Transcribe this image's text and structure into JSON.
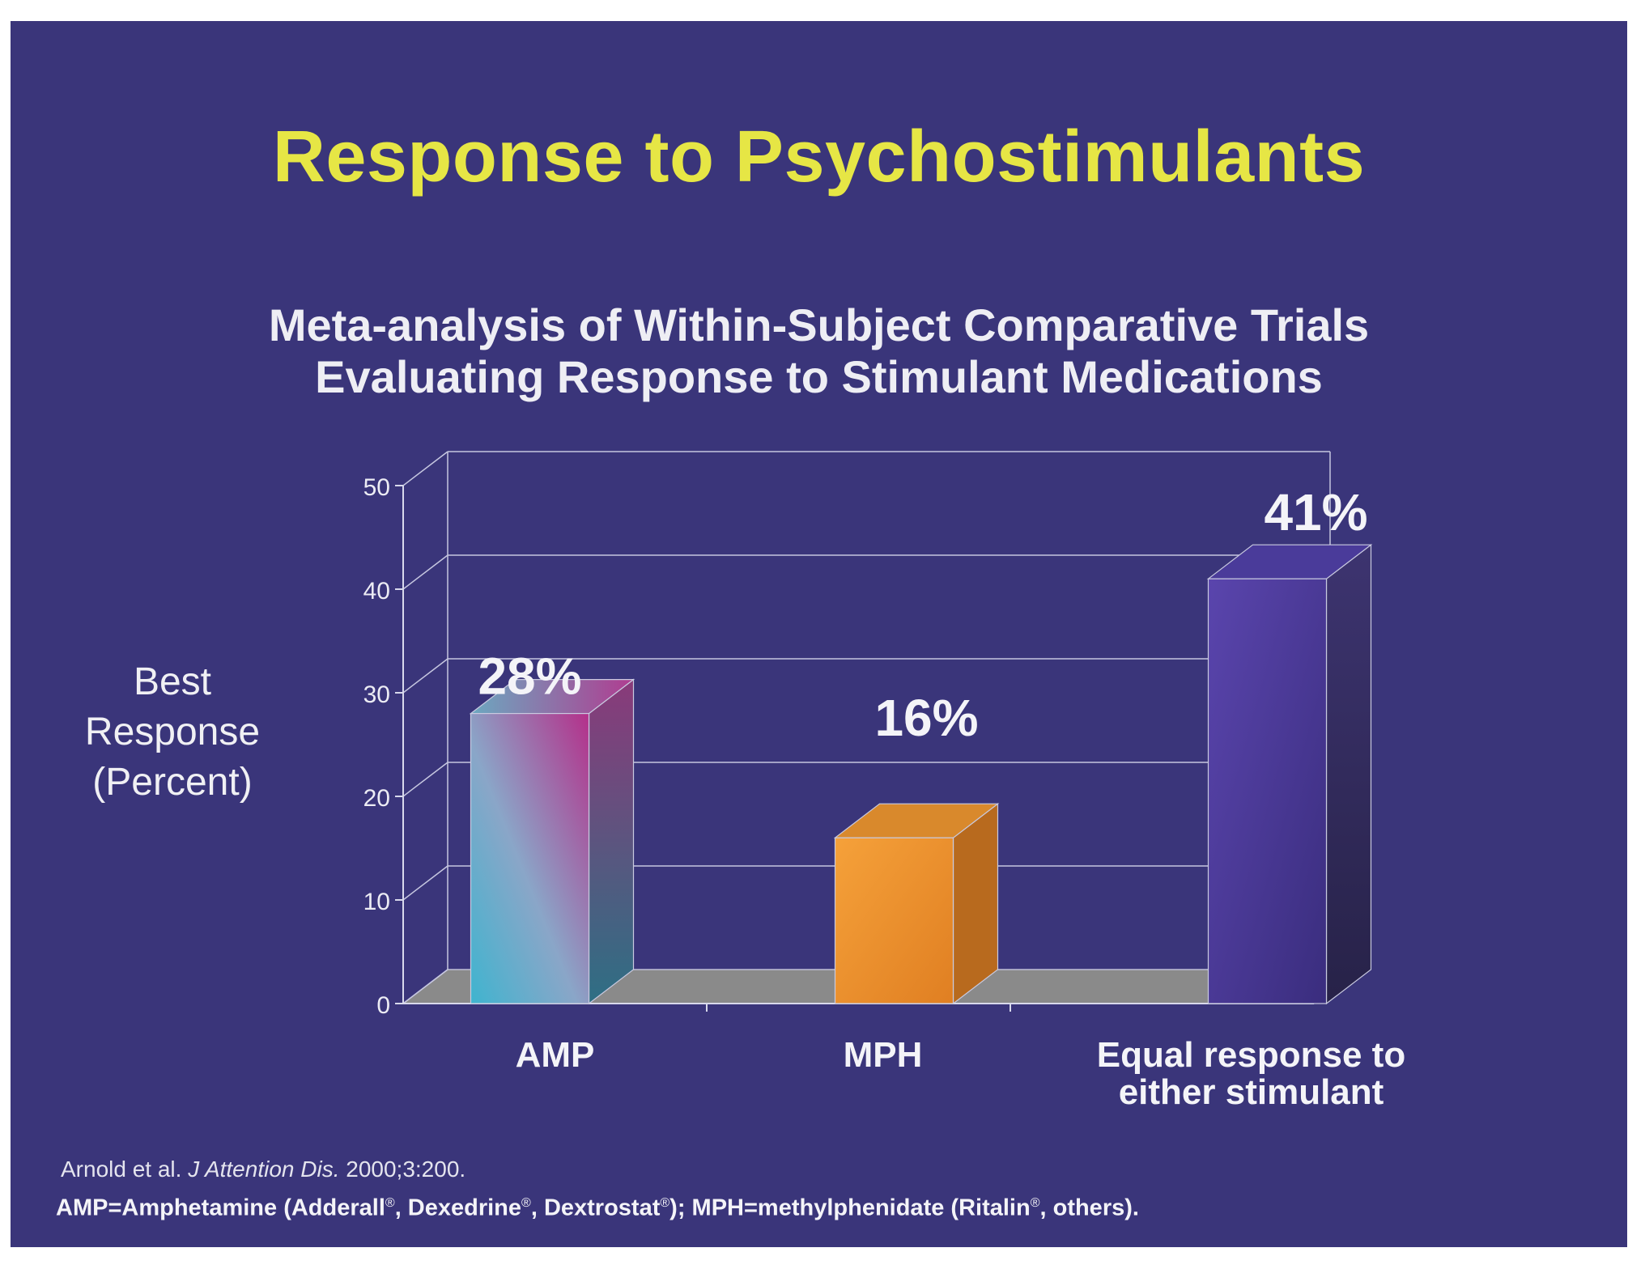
{
  "slide": {
    "title": "Response to Psychostimulants",
    "subtitle_line1": "Meta-analysis of Within-Subject Comparative Trials",
    "subtitle_line2": "Evaluating Response to Stimulant Medications",
    "background_color": "#3a357a",
    "title_color": "#e6e645"
  },
  "citation": {
    "authors": "Arnold et al.",
    "journal": "J Attention Dis.",
    "ref": "2000;3:200."
  },
  "footnote": {
    "p1": "AMP=Amphetamine (Adderall",
    "p2": ", Dexedrine",
    "p3": ", Dextrostat",
    "p4": "); MPH=methylphenidate (Ritalin",
    "p5": ", others).",
    "reg": "®"
  },
  "chart_data": {
    "type": "bar",
    "categories": [
      [
        "AMP"
      ],
      [
        "MPH"
      ],
      [
        "Equal response to",
        "either stimulant"
      ]
    ],
    "values": [
      28,
      16,
      41
    ],
    "data_labels": [
      "28%",
      "16%",
      "41%"
    ],
    "ylabel_lines": [
      "Best",
      "Response",
      "(Percent)"
    ],
    "ylim": [
      0,
      50
    ],
    "yticks": [
      0,
      10,
      20,
      30,
      40,
      50
    ],
    "grid": true,
    "style": "3d",
    "bar_colors": [
      "#58a8c6",
      "#f0952f",
      "#4a3a9a"
    ],
    "floor_color": "#8a8a8a"
  }
}
